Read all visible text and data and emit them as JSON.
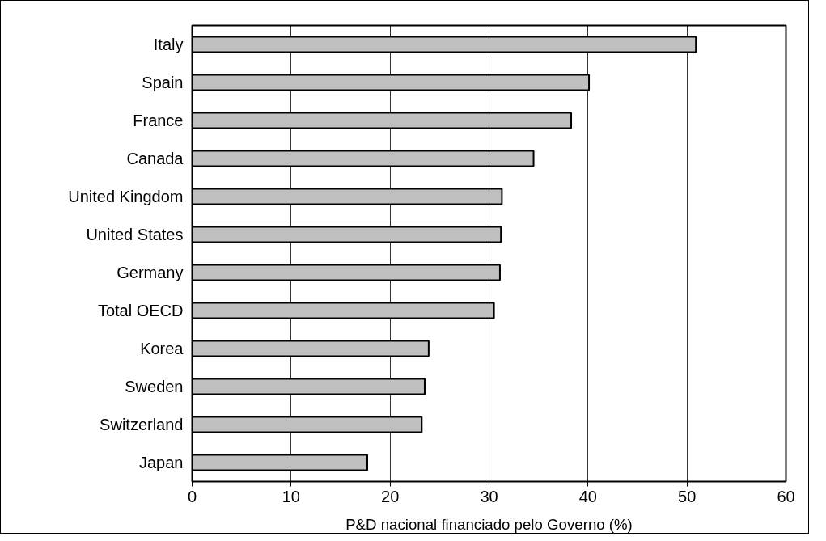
{
  "chart_data": {
    "type": "bar",
    "orientation": "horizontal",
    "xlabel": "P&D nacional financiado pelo Governo (%)",
    "categories": [
      "Italy",
      "Spain",
      "France",
      "Canada",
      "United Kingdom",
      "United States",
      "Germany",
      "Total OECD",
      "Korea",
      "Sweden",
      "Switzerland",
      "Japan"
    ],
    "values": [
      50.9,
      40.1,
      38.3,
      34.5,
      31.3,
      31.2,
      31.1,
      30.5,
      23.9,
      23.5,
      23.2,
      17.7
    ],
    "color": "#c0c0c0",
    "xlim": [
      0,
      60
    ],
    "xticks": [
      0,
      10,
      20,
      30,
      40,
      50,
      60
    ],
    "grid": "x"
  }
}
